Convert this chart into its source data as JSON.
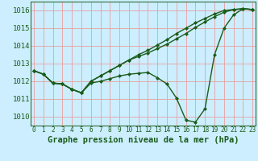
{
  "title": "Graphe pression niveau de la mer (hPa)",
  "bg_color": "#cceeff",
  "grid_color": "#e8a0a0",
  "line_color": "#1a5c1a",
  "text_color": "#1a5c1a",
  "xlim": [
    -0.3,
    23.3
  ],
  "ylim": [
    1009.5,
    1016.5
  ],
  "yticks": [
    1010,
    1011,
    1012,
    1013,
    1014,
    1015,
    1016
  ],
  "xticks": [
    0,
    1,
    2,
    3,
    4,
    5,
    6,
    7,
    8,
    9,
    10,
    11,
    12,
    13,
    14,
    15,
    16,
    17,
    18,
    19,
    20,
    21,
    22,
    23
  ],
  "line1": [
    1012.6,
    1012.4,
    1011.9,
    1011.85,
    1011.55,
    1011.35,
    1011.9,
    1012.0,
    1012.15,
    1012.3,
    1012.4,
    1012.45,
    1012.5,
    1012.2,
    1011.85,
    1011.05,
    1009.8,
    1009.7,
    1010.45,
    1013.5,
    1015.0,
    1015.75,
    1016.1,
    1016.05
  ],
  "line2": [
    1012.6,
    1012.4,
    1011.9,
    1011.85,
    1011.55,
    1011.35,
    1012.0,
    1012.3,
    1012.6,
    1012.9,
    1013.2,
    1013.4,
    1013.6,
    1013.85,
    1014.1,
    1014.4,
    1014.7,
    1015.05,
    1015.35,
    1015.65,
    1015.9,
    1016.05,
    1016.1,
    1016.05
  ],
  "line3": [
    1012.6,
    1012.4,
    1011.9,
    1011.85,
    1011.55,
    1011.35,
    1012.0,
    1012.3,
    1012.6,
    1012.9,
    1013.2,
    1013.5,
    1013.75,
    1014.05,
    1014.35,
    1014.7,
    1015.0,
    1015.3,
    1015.55,
    1015.8,
    1016.0,
    1016.05,
    1016.1,
    1016.05
  ],
  "marker": "D",
  "markersize": 2.0,
  "linewidth": 1.0,
  "title_fontsize": 7.5,
  "ytick_fontsize": 6.5,
  "xtick_fontsize": 5.5
}
